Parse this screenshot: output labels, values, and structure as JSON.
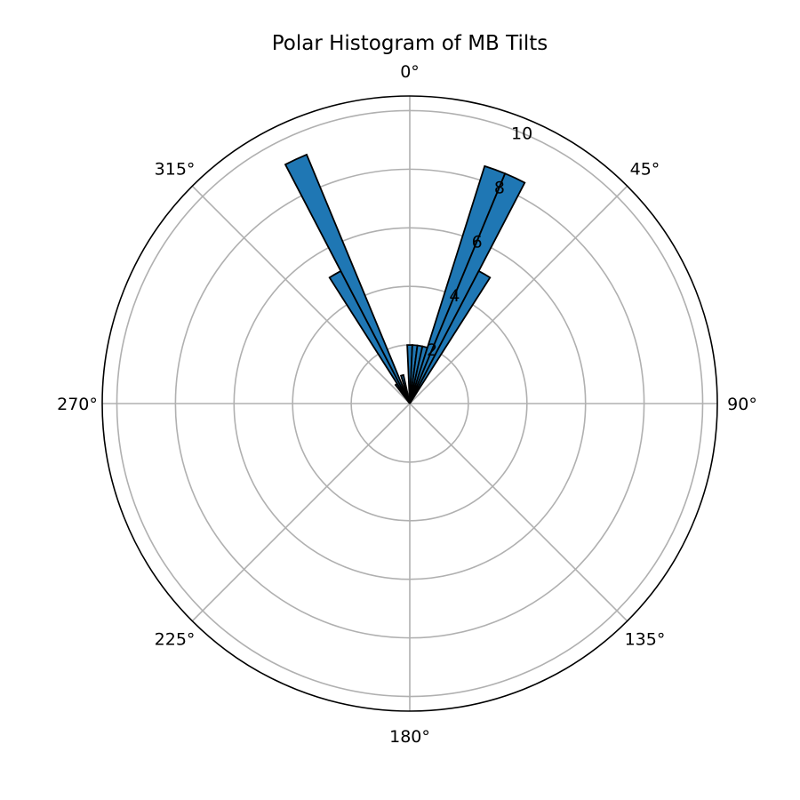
{
  "chart_data": {
    "type": "bar",
    "subtype": "polar-histogram",
    "title": "Polar Histogram of MB Tilts",
    "theta_zero_location": "N",
    "theta_direction": "clockwise",
    "theta_tick_labels": [
      "0°",
      "45°",
      "90°",
      "135°",
      "180°",
      "225°",
      "270°",
      "315°"
    ],
    "r_tick_labels": [
      "2",
      "4",
      "6",
      "8",
      "10"
    ],
    "r_ticks": [
      2,
      4,
      6,
      8,
      10
    ],
    "rlim": [
      0,
      10.5
    ],
    "grid": true,
    "bar_color": "#1f77b4",
    "edge_color": "#000000",
    "bin_width_deg": 5,
    "bins": [
      {
        "start_deg": -37.5,
        "end_deg": -32.5,
        "count": 0.8
      },
      {
        "start_deg": -32.5,
        "end_deg": -27.5,
        "count": 5.1
      },
      {
        "start_deg": -27.5,
        "end_deg": -22.5,
        "count": 9.2
      },
      {
        "start_deg": -17.5,
        "end_deg": -12.5,
        "count": 1.0
      },
      {
        "start_deg": -2.5,
        "end_deg": 2.5,
        "count": 2.0
      },
      {
        "start_deg": 2.5,
        "end_deg": 7.5,
        "count": 2.0
      },
      {
        "start_deg": 7.5,
        "end_deg": 12.5,
        "count": 2.0
      },
      {
        "start_deg": 12.5,
        "end_deg": 17.5,
        "count": 2.0
      },
      {
        "start_deg": 17.5,
        "end_deg": 22.5,
        "count": 8.5
      },
      {
        "start_deg": 22.5,
        "end_deg": 27.5,
        "count": 8.5
      },
      {
        "start_deg": 27.5,
        "end_deg": 32.5,
        "count": 5.1
      }
    ]
  }
}
